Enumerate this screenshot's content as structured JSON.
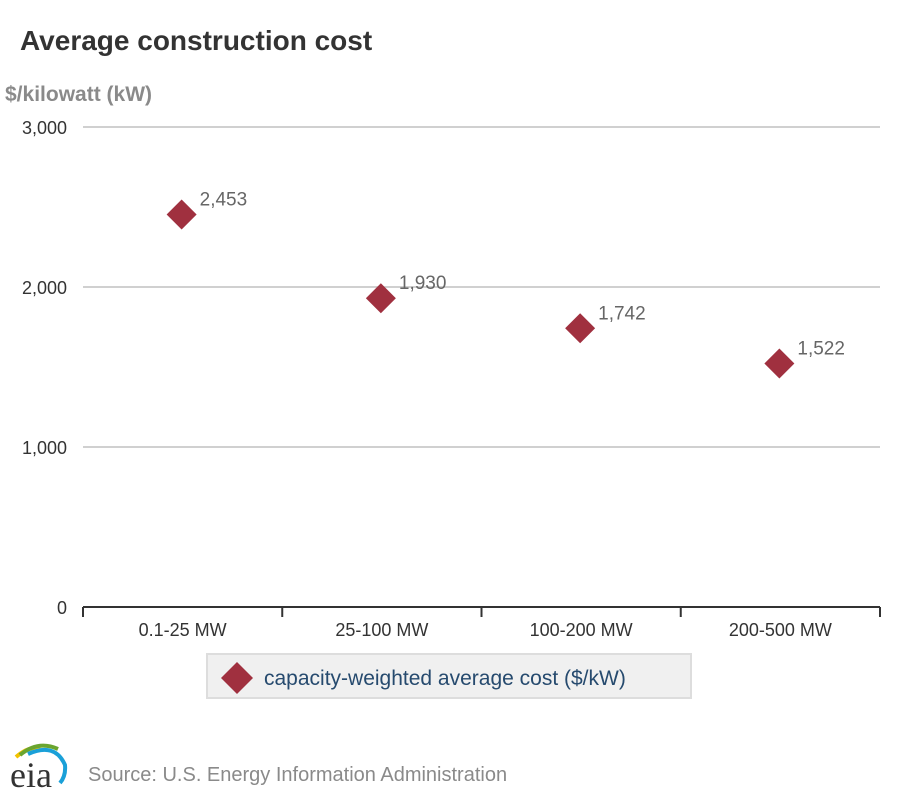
{
  "chart_data": {
    "type": "scatter",
    "title": "Average construction cost",
    "ylabel": "$/kilowatt (kW)",
    "xlabel": "",
    "categories": [
      "0.1-25 MW",
      "25-100 MW",
      "100-200 MW",
      "200-500 MW"
    ],
    "series": [
      {
        "name": "capacity-weighted average cost ($/kW)",
        "values": [
          2453,
          1930,
          1742,
          1522
        ],
        "labels": [
          "2,453",
          "1,930",
          "1,742",
          "1,522"
        ],
        "color": "#a0303f",
        "marker": "diamond"
      }
    ],
    "ylim": [
      0,
      3000
    ],
    "yticks": [
      0,
      1000,
      2000,
      3000
    ],
    "ytick_labels": [
      "0",
      "1,000",
      "2,000",
      "3,000"
    ],
    "grid": true,
    "legend": "bottom-center"
  },
  "footer": {
    "source": "Source: U.S. Energy Information Administration",
    "logo_text": "eia"
  }
}
